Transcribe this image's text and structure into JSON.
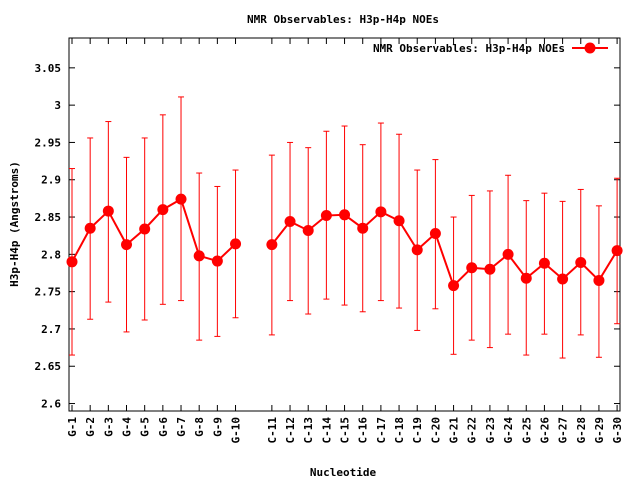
{
  "chart_data": {
    "type": "line",
    "title": "NMR Observables: H3p-H4p NOEs",
    "xlabel": "Nucleotide",
    "ylabel": "H3p-H4p (Angstroms)",
    "ylim": [
      2.59,
      3.09
    ],
    "yticks": [
      "2.6",
      "2.65",
      "2.7",
      "2.75",
      "2.8",
      "2.85",
      "2.9",
      "2.95",
      "3",
      "3.05"
    ],
    "legend_position": "top-right",
    "grid": false,
    "color": "#ff0000",
    "series": [
      {
        "name": "NMR Observables: H3p-H4p NOEs",
        "segments": [
          {
            "categories": [
              "G-1",
              "G-2",
              "G-3",
              "G-4",
              "G-5",
              "G-6",
              "G-7",
              "G-8",
              "G-9",
              "G-10"
            ],
            "values": [
              2.79,
              2.835,
              2.858,
              2.813,
              2.834,
              2.86,
              2.874,
              2.798,
              2.791,
              2.814
            ],
            "err_low": [
              2.665,
              2.713,
              2.736,
              2.696,
              2.712,
              2.733,
              2.738,
              2.685,
              2.69,
              2.715
            ],
            "err_high": [
              2.915,
              2.956,
              2.978,
              2.93,
              2.956,
              2.987,
              3.011,
              2.909,
              2.891,
              2.913
            ]
          },
          {
            "categories": [
              "C-11",
              "C-12",
              "C-13",
              "C-14",
              "C-15",
              "C-16",
              "C-17",
              "C-18",
              "C-19",
              "C-20",
              "G-21",
              "G-22",
              "G-23",
              "G-24",
              "G-25",
              "G-26",
              "G-27",
              "G-28",
              "G-29",
              "G-30"
            ],
            "values": [
              2.813,
              2.844,
              2.832,
              2.852,
              2.853,
              2.835,
              2.857,
              2.845,
              2.806,
              2.828,
              2.758,
              2.782,
              2.78,
              2.8,
              2.768,
              2.788,
              2.767,
              2.789,
              2.765,
              2.805
            ],
            "err_low": [
              2.692,
              2.738,
              2.72,
              2.74,
              2.732,
              2.723,
              2.738,
              2.728,
              2.698,
              2.727,
              2.666,
              2.685,
              2.675,
              2.693,
              2.665,
              2.693,
              2.661,
              2.692,
              2.662,
              2.707
            ],
            "err_high": [
              2.933,
              2.95,
              2.943,
              2.965,
              2.972,
              2.947,
              2.976,
              2.961,
              2.913,
              2.927,
              2.85,
              2.879,
              2.885,
              2.906,
              2.872,
              2.882,
              2.871,
              2.887,
              2.865,
              2.902
            ]
          }
        ]
      }
    ]
  }
}
